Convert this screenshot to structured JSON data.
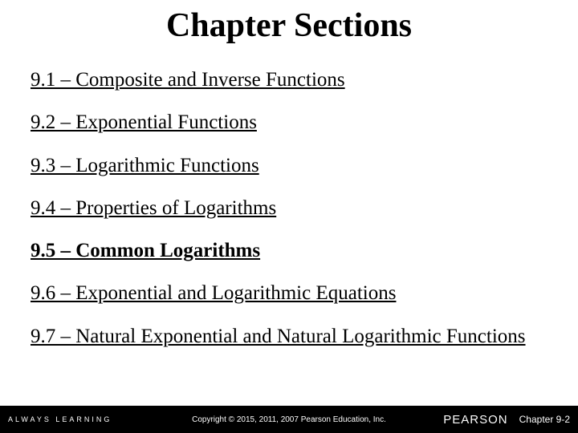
{
  "title": "Chapter Sections",
  "sections": [
    {
      "label": "9.1 – Composite and Inverse Functions",
      "bold": false
    },
    {
      "label": "9.2 – Exponential Functions",
      "bold": false
    },
    {
      "label": "9.3 – Logarithmic Functions",
      "bold": false
    },
    {
      "label": "9.4 – Properties of Logarithms",
      "bold": false
    },
    {
      "label": "9.5 – Common Logarithms",
      "bold": true
    },
    {
      "label": "9.6 – Exponential and Logarithmic Equations",
      "bold": false
    },
    {
      "label": "9.7 – Natural Exponential and Natural Logarithmic Functions",
      "bold": false
    }
  ],
  "footer": {
    "left": "ALWAYS LEARNING",
    "copyright": "Copyright © 2015, 2011, 2007 Pearson Education, Inc.",
    "logo": "PEARSON",
    "chapter_ref": "Chapter 9-2"
  },
  "colors": {
    "background": "#ffffff",
    "text": "#000000",
    "footer_bg": "#000000",
    "footer_text": "#fdfdfd"
  },
  "typography": {
    "title_fontsize": 42,
    "section_fontsize": 25,
    "footer_fontsize": 10,
    "title_font": "Palatino Linotype",
    "body_font": "Palatino Linotype"
  }
}
